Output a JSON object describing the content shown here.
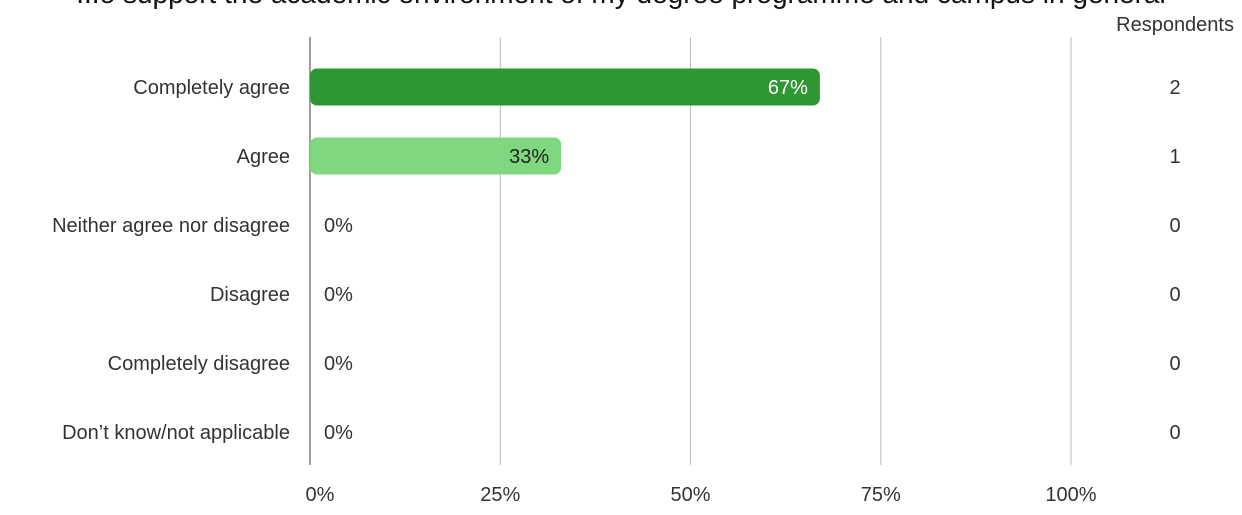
{
  "chart_data": {
    "type": "bar",
    "orientation": "horizontal",
    "title": "...o support the academic environment of my degree programme and campus in general",
    "counts_header": "Respondents",
    "categories": [
      "Completely agree",
      "Agree",
      "Neither agree nor disagree",
      "Disagree",
      "Completely disagree",
      "Don’t know/not applicable"
    ],
    "values": [
      67,
      33,
      0,
      0,
      0,
      0
    ],
    "value_labels": [
      "67%",
      "33%",
      "0%",
      "0%",
      "0%",
      "0%"
    ],
    "respondents": [
      "2",
      "1",
      "0",
      "0",
      "0",
      "0"
    ],
    "xlim": [
      0,
      100
    ],
    "x_ticks": [
      0,
      25,
      50,
      75,
      100
    ],
    "x_tick_labels": [
      "0%",
      "25%",
      "50%",
      "75%",
      "100%"
    ],
    "grid": true,
    "colors": [
      "#2e9632",
      "#7fd87f"
    ],
    "label_colors": [
      "#ffffff",
      "#222222"
    ]
  }
}
